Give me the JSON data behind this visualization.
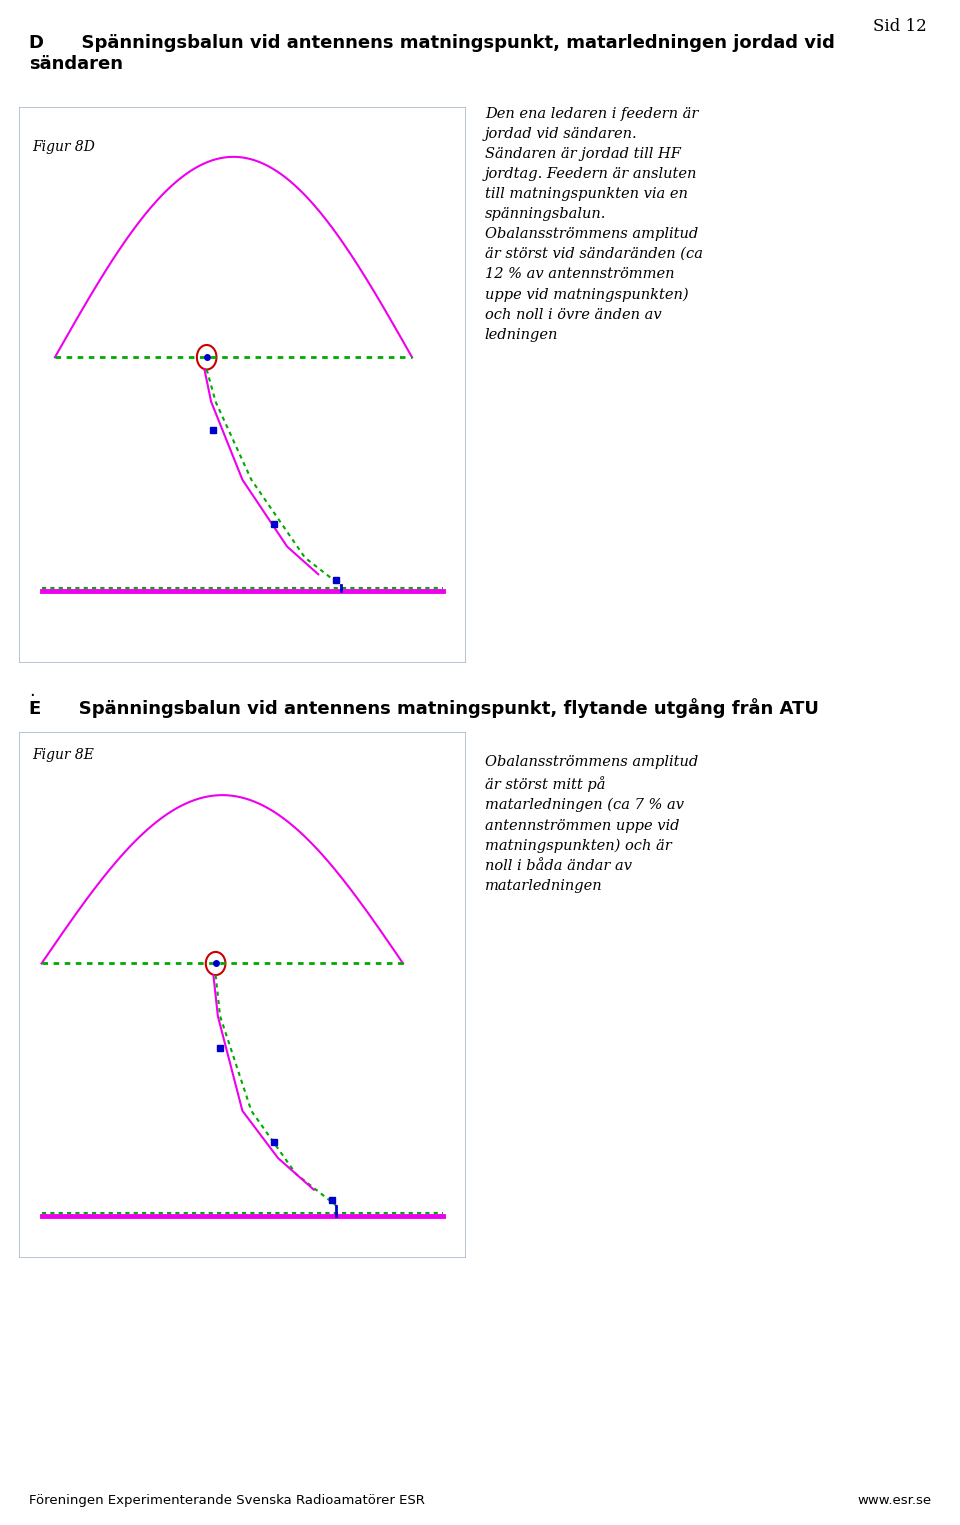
{
  "page_num": "Sid 12",
  "title_D_line1": "D      Spänningsbalun vid antennens matningspunkt, matarledningen jordad vid",
  "title_D_line2": "sändaren",
  "title_E": "E      Spänningsbalun vid antennens matningspunkt, flytande utgång från ATU",
  "fig_D_label": "Figur 8D",
  "fig_E_label": "Figur 8E",
  "text_D": "Den ena ledaren i feedern är\njordad vid sändaren.\nSändaren är jordad till HF\njordtag. Feedern är ansluten\ntill matningspunkten via en\nspänningsbalun.\nObalansströmmens amplitud\när störst vid sändaränden (ca\n12 % av antennströmmen\nuppe vid matningspunkten)\noch noll i övre änden av\nledningen",
  "text_E": "Obalansströmmens amplitud\när störst mitt på\nmatarledningen (ca 7 % av\nantennströmmen uppe vid\nmatningspunkten) och är\nnoll i båda ändar av\nmatarledningen",
  "footer_left": "Föreningen Experimenterande Svenska Radioamatörer ESR",
  "footer_right": "www.esr.se",
  "bg_color": "#ffffff",
  "box_edge_color": "#aabbcc",
  "magenta": "#ee00ee",
  "green": "#00aa00",
  "blue": "#0000cc",
  "red": "#cc0000"
}
